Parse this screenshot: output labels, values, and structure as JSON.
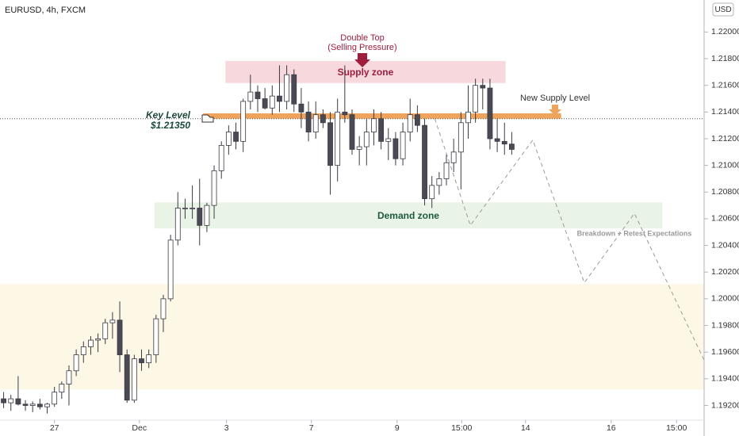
{
  "chart_data": {
    "type": "candlestick",
    "title": "EURUSD, 4h, FXCM",
    "currency": "USD",
    "x": [
      0,
      1,
      2,
      3,
      4,
      5,
      6,
      7,
      8,
      9,
      10,
      11,
      12,
      13,
      14,
      15,
      16,
      17,
      18,
      19,
      20,
      21,
      22,
      23,
      24,
      25,
      26,
      27,
      28,
      29,
      30,
      31,
      32,
      33,
      34,
      35,
      36,
      37,
      38,
      39,
      40,
      41,
      42,
      43,
      44,
      45,
      46,
      47,
      48,
      49,
      50,
      51,
      52,
      53,
      54,
      55,
      56,
      57,
      58,
      59,
      60,
      61,
      62,
      63,
      64,
      65,
      66,
      67,
      68,
      69,
      70
    ],
    "open": [
      1.1925,
      1.1922,
      1.1925,
      1.1921,
      1.192,
      1.1921,
      1.1919,
      1.1921,
      1.193,
      1.1936,
      1.1946,
      1.1958,
      1.1964,
      1.1969,
      1.197,
      1.1982,
      1.1984,
      1.1958,
      1.1924,
      1.1955,
      1.1952,
      1.1958,
      1.1985,
      1.2,
      1.2044,
      1.2068,
      1.2068,
      1.2068,
      1.2055,
      1.207,
      1.2096,
      1.2115,
      1.2125,
      1.2118,
      1.2148,
      1.2155,
      1.215,
      1.2143,
      1.2152,
      1.2148,
      1.2168,
      1.2146,
      1.214,
      1.2125,
      1.2138,
      1.2132,
      1.21,
      1.214,
      1.2138,
      1.2112,
      1.2114,
      1.2125,
      1.2135,
      1.2118,
      1.212,
      1.2105,
      1.2125,
      1.2138,
      1.213,
      1.2075,
      1.2085,
      1.209,
      1.2102,
      1.211,
      1.2132,
      1.214,
      1.216,
      1.2158,
      1.212,
      1.2118,
      1.2116
    ],
    "high": [
      1.193,
      1.1928,
      1.1942,
      1.1924,
      1.1923,
      1.1925,
      1.1922,
      1.1934,
      1.1938,
      1.195,
      1.1962,
      1.1968,
      1.1972,
      1.1974,
      1.1985,
      1.199,
      1.1998,
      1.1962,
      1.1958,
      1.1962,
      1.1962,
      1.1988,
      1.2003,
      1.2048,
      1.208,
      1.2075,
      1.2085,
      1.209,
      1.2072,
      1.21,
      1.2118,
      1.213,
      1.2132,
      1.215,
      1.2168,
      1.216,
      1.2158,
      1.216,
      1.2175,
      1.2175,
      1.2172,
      1.2158,
      1.2148,
      1.2148,
      1.2142,
      1.214,
      1.215,
      1.2175,
      1.2142,
      1.2122,
      1.2135,
      1.2142,
      1.214,
      1.2128,
      1.2125,
      1.2132,
      1.215,
      1.2145,
      1.2135,
      1.2092,
      1.2095,
      1.2108,
      1.212,
      1.214,
      1.216,
      1.2165,
      1.2165,
      1.2165,
      1.2135,
      1.2132,
      1.2125
    ],
    "low": [
      1.1918,
      1.1916,
      1.192,
      1.1916,
      1.1915,
      1.1917,
      1.1914,
      1.1919,
      1.1925,
      1.192,
      1.1942,
      1.1952,
      1.1958,
      1.196,
      1.1966,
      1.197,
      1.1945,
      1.1922,
      1.1922,
      1.1946,
      1.1948,
      1.1952,
      1.1975,
      1.1998,
      1.204,
      1.206,
      1.206,
      1.204,
      1.205,
      1.206,
      1.209,
      1.2108,
      1.2112,
      1.211,
      1.2142,
      1.214,
      1.2142,
      1.2138,
      1.214,
      1.2142,
      1.214,
      1.2128,
      1.2118,
      1.212,
      1.2128,
      1.2078,
      1.2088,
      1.2132,
      1.2108,
      1.21,
      1.21,
      1.2115,
      1.2112,
      1.2104,
      1.21,
      1.21,
      1.2118,
      1.2125,
      1.207,
      1.2068,
      1.2078,
      1.2085,
      1.2095,
      1.2082,
      1.212,
      1.2132,
      1.2142,
      1.2112,
      1.211,
      1.2108,
      1.2108
    ],
    "close": [
      1.1922,
      1.1925,
      1.1921,
      1.192,
      1.1921,
      1.1919,
      1.1921,
      1.193,
      1.1936,
      1.1946,
      1.1958,
      1.1964,
      1.1969,
      1.197,
      1.1982,
      1.1984,
      1.1958,
      1.1924,
      1.1955,
      1.1952,
      1.1958,
      1.1985,
      1.2,
      1.2044,
      1.2068,
      1.2068,
      1.2068,
      1.2055,
      1.207,
      1.2096,
      1.2115,
      1.2125,
      1.2118,
      1.2148,
      1.2155,
      1.215,
      1.2143,
      1.2152,
      1.2148,
      1.2168,
      1.2146,
      1.214,
      1.2125,
      1.2138,
      1.2132,
      1.21,
      1.214,
      1.2138,
      1.2112,
      1.2114,
      1.2125,
      1.2135,
      1.2118,
      1.212,
      1.2105,
      1.2125,
      1.2138,
      1.213,
      1.2075,
      1.2085,
      1.209,
      1.2102,
      1.211,
      1.2132,
      1.214,
      1.216,
      1.2158,
      1.212,
      1.2118,
      1.2116,
      1.2112
    ],
    "up_color": "#ffffff",
    "down_color": "#4a4a55",
    "xlim": [
      -0.5,
      96.5
    ],
    "xticks": [
      {
        "value": 7.0,
        "label": "27"
      },
      {
        "value": 18.7,
        "label": "Dec"
      },
      {
        "value": 30.7,
        "label": "3"
      },
      {
        "value": 42.4,
        "label": "7"
      },
      {
        "value": 54.2,
        "label": "9"
      },
      {
        "value": 63.1,
        "label": "15:00"
      },
      {
        "value": 71.9,
        "label": "14"
      },
      {
        "value": 83.7,
        "label": "16"
      },
      {
        "value": 92.7,
        "label": "15:00"
      }
    ],
    "ylim": [
      1.1909,
      1.2224
    ],
    "yticks": [
      {
        "value": 1.192,
        "label": "1.19200"
      },
      {
        "value": 1.194,
        "label": "1.19400"
      },
      {
        "value": 1.196,
        "label": "1.19600"
      },
      {
        "value": 1.198,
        "label": "1.19800"
      },
      {
        "value": 1.2,
        "label": "1.20000"
      },
      {
        "value": 1.202,
        "label": "1.20200"
      },
      {
        "value": 1.204,
        "label": "1.20400"
      },
      {
        "value": 1.206,
        "label": "1.20600"
      },
      {
        "value": 1.208,
        "label": "1.20800"
      },
      {
        "value": 1.21,
        "label": "1.21000"
      },
      {
        "value": 1.212,
        "label": "1.21200"
      },
      {
        "value": 1.214,
        "label": "1.21400"
      },
      {
        "value": 1.216,
        "label": "1.21600"
      },
      {
        "value": 1.218,
        "label": "1.21800"
      },
      {
        "value": 1.22,
        "label": "1.22000"
      }
    ],
    "zones": [
      {
        "y": [
          1.1932,
          1.2011
        ],
        "x": [
          -0.5,
          96.5
        ],
        "color": "#fdf7e6"
      },
      {
        "name": "Supply zone",
        "y": [
          1.2162,
          1.2178
        ],
        "x": [
          30.6,
          69.1
        ],
        "color": "#f6d8dd",
        "text_color": "#a21d3c"
      },
      {
        "name": "Demand zone",
        "y": [
          1.2053,
          1.2072
        ],
        "x": [
          20.8,
          90.7
        ],
        "color": "#e9f4e6",
        "text_color": "#1d5a3b"
      },
      {
        "y": [
          1.2135,
          1.2139
        ],
        "x": [
          27.5,
          76.8
        ],
        "color": "#f0a35a"
      }
    ],
    "key_level": {
      "label": "Key Level",
      "price": {
        "value": 1.2135,
        "label": "$1.21350"
      }
    },
    "double_top": [
      "Double Top",
      "(Selling Pressure)"
    ],
    "new_supply": "New Supply Level",
    "breakdown": "Breakdown  + Retest Expectations",
    "projection": {
      "x": [
        59.4,
        64.3,
        72.9,
        80.0,
        86.9,
        96.5
      ],
      "y": [
        1.2135,
        1.2055,
        1.2119,
        1.2012,
        1.2064,
        1.1954
      ]
    }
  }
}
